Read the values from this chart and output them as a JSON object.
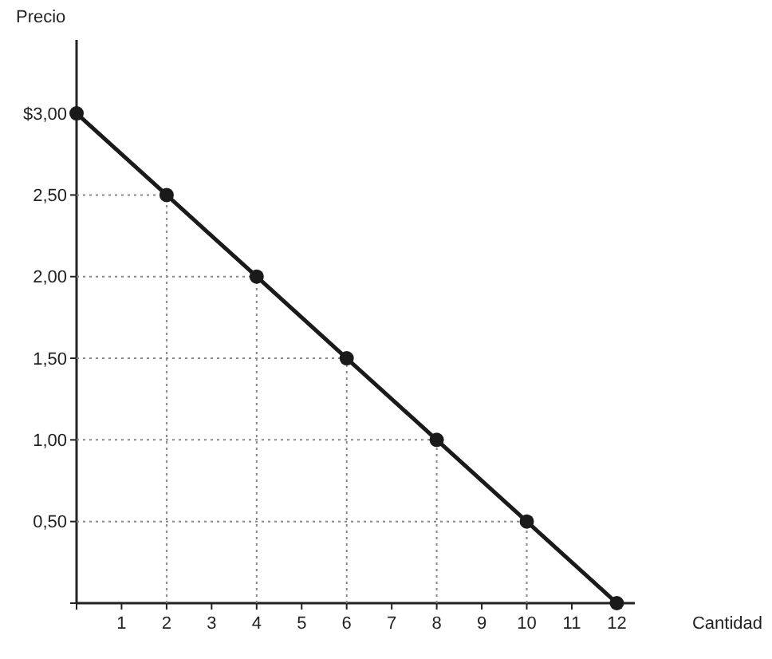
{
  "chart_data": {
    "type": "line",
    "xlabel": "Cantidad",
    "ylabel": "Precio",
    "xlim": [
      0,
      12.4
    ],
    "xticks": [
      {
        "value": 0,
        "label": null
      },
      1,
      2,
      3,
      4,
      5,
      6,
      7,
      8,
      9,
      10,
      11,
      12
    ],
    "ylim": [
      0,
      3.45
    ],
    "yticks": [
      {
        "value": 0,
        "label": null
      },
      {
        "value": 0.5,
        "label": "0,50"
      },
      {
        "value": 1,
        "label": "1,00"
      },
      {
        "value": 1.5,
        "label": "1,50"
      },
      {
        "value": 2,
        "label": "2,00"
      },
      {
        "value": 2.5,
        "label": "2,50"
      },
      {
        "value": 3,
        "label": "$3,00"
      }
    ],
    "series": [
      {
        "x": [
          0,
          2
        ],
        "values": [
          2.5,
          2.5
        ],
        "color": "#888888",
        "line_style": "dotted",
        "marker": "none"
      },
      {
        "x": [
          2,
          2
        ],
        "values": [
          0,
          2.5
        ],
        "color": "#888888",
        "line_style": "dotted",
        "marker": "none"
      },
      {
        "x": [
          0,
          4
        ],
        "values": [
          2,
          2
        ],
        "color": "#888888",
        "line_style": "dotted",
        "marker": "none"
      },
      {
        "x": [
          4,
          4
        ],
        "values": [
          0,
          2
        ],
        "color": "#888888",
        "line_style": "dotted",
        "marker": "none"
      },
      {
        "x": [
          0,
          6
        ],
        "values": [
          1.5,
          1.5
        ],
        "color": "#888888",
        "line_style": "dotted",
        "marker": "none"
      },
      {
        "x": [
          6,
          6
        ],
        "values": [
          0,
          1.5
        ],
        "color": "#888888",
        "line_style": "dotted",
        "marker": "none"
      },
      {
        "x": [
          0,
          8
        ],
        "values": [
          1,
          1
        ],
        "color": "#888888",
        "line_style": "dotted",
        "marker": "none"
      },
      {
        "x": [
          8,
          8
        ],
        "values": [
          0,
          1
        ],
        "color": "#888888",
        "line_style": "dotted",
        "marker": "none"
      },
      {
        "x": [
          0,
          10
        ],
        "values": [
          0.5,
          0.5
        ],
        "color": "#888888",
        "line_style": "dotted",
        "marker": "none"
      },
      {
        "x": [
          10,
          10
        ],
        "values": [
          0,
          0.5
        ],
        "color": "#888888",
        "line_style": "dotted",
        "marker": "none"
      },
      {
        "x": [
          0,
          2,
          4,
          6,
          8,
          10,
          12
        ],
        "values": [
          3,
          2.5,
          2,
          1.5,
          1,
          0.5,
          0
        ],
        "color": "#1a1a1a",
        "line_style": "solid",
        "marker": "circle"
      }
    ]
  }
}
